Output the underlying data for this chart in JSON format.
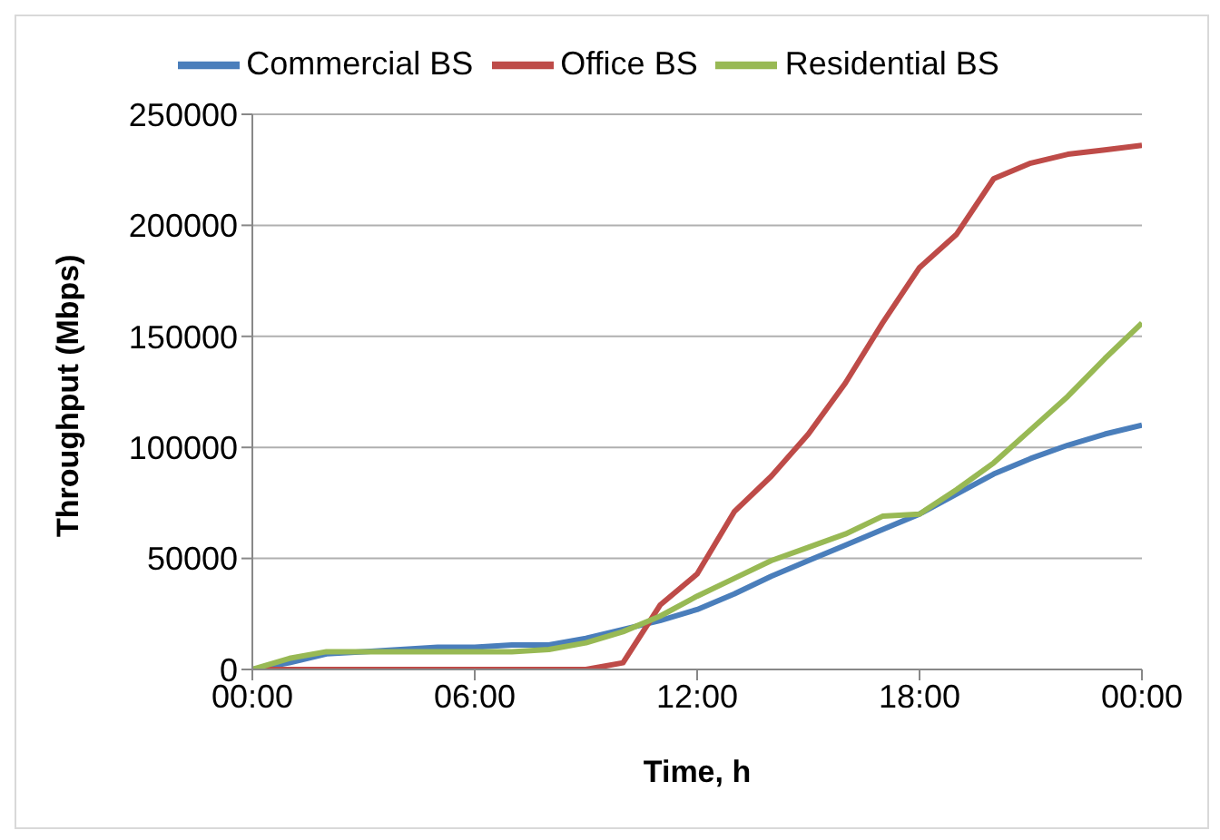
{
  "chart_data": {
    "type": "line",
    "xlabel": "Time, h",
    "ylabel": "Throughput  (Mbps)",
    "x": [
      0,
      1,
      2,
      3,
      4,
      5,
      6,
      7,
      8,
      9,
      10,
      11,
      12,
      13,
      14,
      15,
      16,
      17,
      18,
      19,
      20,
      21,
      22,
      23,
      24
    ],
    "series": [
      {
        "name": "Commercial BS",
        "color": "#4a7ebb",
        "values": [
          0,
          3000,
          7000,
          8000,
          9000,
          10000,
          10000,
          11000,
          11000,
          14000,
          18000,
          22000,
          27000,
          34000,
          42000,
          49000,
          56000,
          63000,
          70000,
          79000,
          88000,
          95000,
          101000,
          106000,
          110000
        ]
      },
      {
        "name": "Office BS",
        "color": "#be4b48",
        "values": [
          0,
          0,
          0,
          0,
          0,
          0,
          0,
          0,
          0,
          0,
          3000,
          29000,
          43000,
          71000,
          87000,
          106000,
          129000,
          156000,
          181000,
          196000,
          221000,
          228000,
          232000,
          234000,
          236000
        ]
      },
      {
        "name": "Residential BS",
        "color": "#98b954",
        "values": [
          0,
          5000,
          8000,
          8000,
          8000,
          8000,
          8000,
          8000,
          9000,
          12000,
          17000,
          24000,
          33000,
          41000,
          49000,
          55000,
          61000,
          69000,
          70000,
          81000,
          93000,
          108000,
          123000,
          140000,
          156000
        ]
      }
    ],
    "xlim": [
      0,
      24
    ],
    "xticks": [
      {
        "value": 0,
        "label": "00:00"
      },
      {
        "value": 6,
        "label": "06:00"
      },
      {
        "value": 12,
        "label": "12:00"
      },
      {
        "value": 18,
        "label": "18:00"
      },
      {
        "value": 24,
        "label": "00:00"
      }
    ],
    "ylim": [
      0,
      250000
    ],
    "yticks": [
      0,
      50000,
      100000,
      150000,
      200000,
      250000
    ],
    "grid": "y",
    "legend": "top",
    "marker": "none",
    "line_style": "solid"
  }
}
